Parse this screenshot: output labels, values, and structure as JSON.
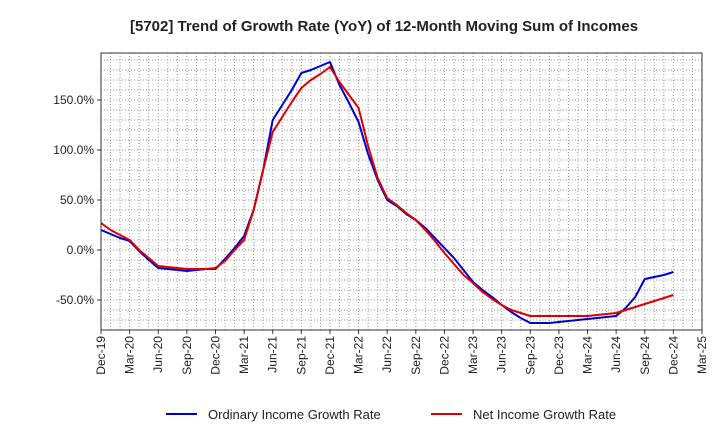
{
  "chart_data": {
    "type": "line",
    "title": "[5702]  Trend of Growth Rate (YoY) of 12-Month Moving Sum of Incomes",
    "xlabel": "",
    "ylabel": "",
    "ylim": [
      -80,
      197
    ],
    "grid": true,
    "legend_position": "bottom",
    "x_tick_labels": [
      "Dec-19",
      "Mar-20",
      "Jun-20",
      "Sep-20",
      "Dec-20",
      "Mar-21",
      "Jun-21",
      "Sep-21",
      "Dec-21",
      "Mar-22",
      "Jun-22",
      "Sep-22",
      "Dec-22",
      "Mar-23",
      "Jun-23",
      "Sep-23",
      "Dec-23",
      "Mar-24",
      "Jun-24",
      "Sep-24",
      "Dec-24",
      "Mar-25"
    ],
    "y_ticks": [
      -50,
      0,
      50,
      100,
      150
    ],
    "y_tick_labels": [
      "-50.0%",
      "0.0%",
      "50.0%",
      "100.0%",
      "150.0%"
    ],
    "x": [
      "Dec-19",
      "Jan-20",
      "Feb-20",
      "Mar-20",
      "Apr-20",
      "May-20",
      "Jun-20",
      "Jul-20",
      "Aug-20",
      "Sep-20",
      "Oct-20",
      "Nov-20",
      "Dec-20",
      "Jan-21",
      "Feb-21",
      "Mar-21",
      "Apr-21",
      "May-21",
      "Jun-21",
      "Jul-21",
      "Aug-21",
      "Sep-21",
      "Oct-21",
      "Nov-21",
      "Dec-21",
      "Jan-22",
      "Feb-22",
      "Mar-22",
      "Apr-22",
      "May-22",
      "Jun-22",
      "Jul-22",
      "Aug-22",
      "Sep-22",
      "Oct-22",
      "Nov-22",
      "Dec-22",
      "Jan-23",
      "Feb-23",
      "Mar-23",
      "Apr-23",
      "May-23",
      "Jun-23",
      "Jul-23",
      "Aug-23",
      "Sep-23",
      "Oct-23",
      "Nov-23",
      "Dec-23",
      "Jan-24",
      "Feb-24",
      "Mar-24",
      "Apr-24",
      "May-24",
      "Jun-24",
      "Jul-24",
      "Aug-24",
      "Sep-24",
      "Oct-24",
      "Nov-24",
      "Dec-24"
    ],
    "series": [
      {
        "name": "Ordinary Income Growth Rate",
        "color": "#0000cc",
        "values": [
          20,
          16,
          12,
          9,
          -1,
          -10,
          -18,
          -19,
          -20,
          -21,
          -20,
          -19,
          -19,
          -9,
          2,
          14,
          40,
          80,
          130,
          145,
          160,
          177,
          180,
          184,
          188,
          165,
          147,
          128,
          96,
          70,
          50,
          44,
          36,
          30,
          22,
          12,
          2,
          -8,
          -20,
          -32,
          -40,
          -47,
          -55,
          -62,
          -68,
          -73,
          -73,
          -73,
          -72,
          -71,
          -70,
          -69,
          -68,
          -67,
          -66,
          -58,
          -47,
          -29,
          -27,
          -25,
          -22
        ]
      },
      {
        "name": "Net Income Growth Rate",
        "color": "#dd0000",
        "values": [
          27,
          20,
          15,
          10,
          0,
          -8,
          -16,
          -17,
          -18,
          -19,
          -19,
          -19,
          -18,
          -11,
          0,
          10,
          40,
          80,
          118,
          133,
          148,
          162,
          170,
          176,
          183,
          168,
          155,
          142,
          104,
          72,
          52,
          45,
          37,
          30,
          20,
          9,
          -3,
          -14,
          -25,
          -33,
          -42,
          -49,
          -55,
          -60,
          -63,
          -66,
          -66,
          -66,
          -66,
          -66,
          -66,
          -66,
          -65,
          -64,
          -63,
          -60,
          -57,
          -54,
          -51,
          -48,
          -45
        ]
      }
    ]
  }
}
